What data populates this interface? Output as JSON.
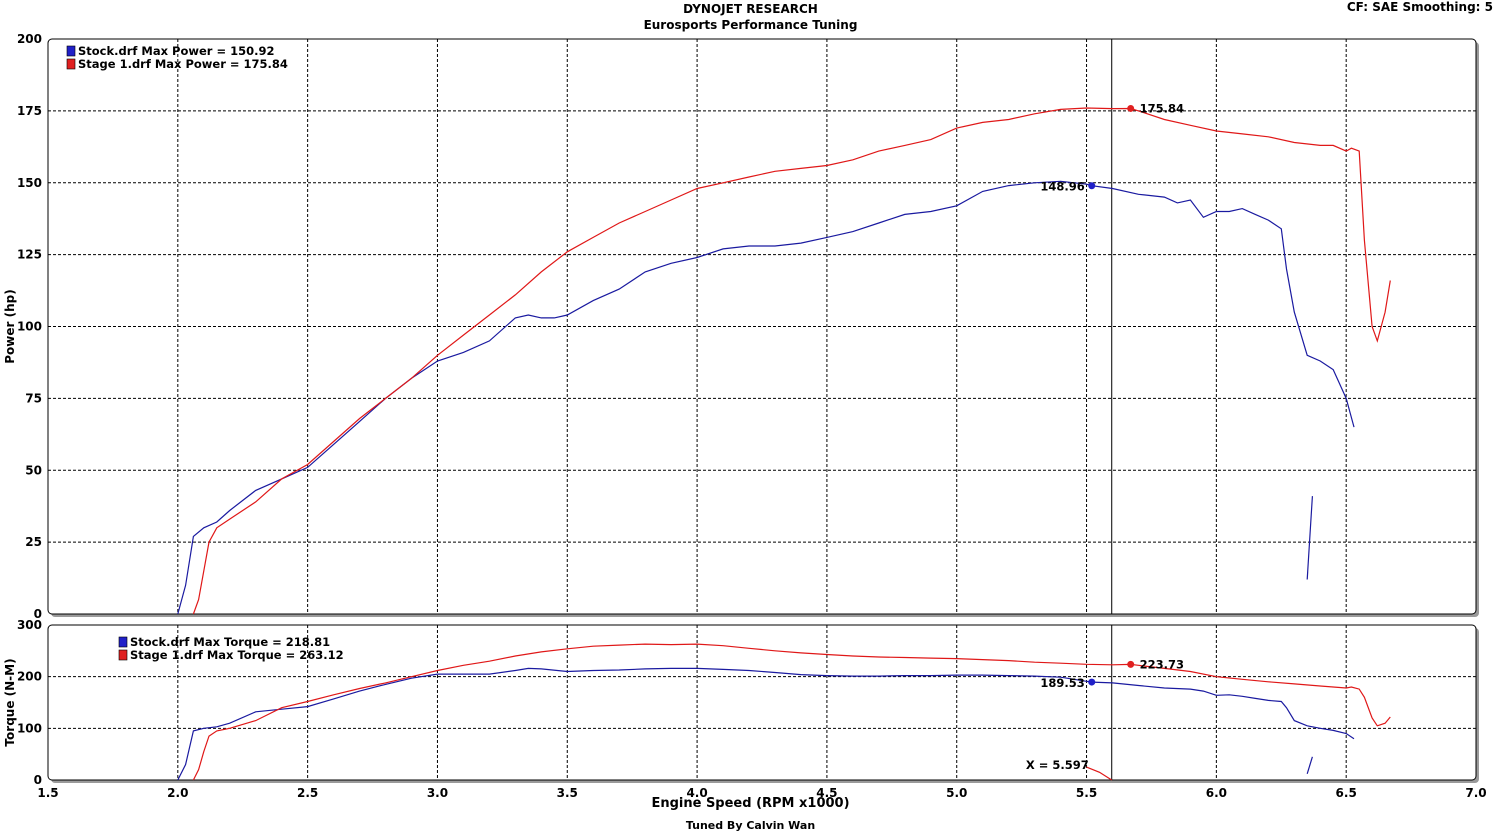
{
  "header": {
    "title": "DYNOJET RESEARCH",
    "subtitle": "Eurosports Performance Tuning",
    "cf_smoothing": "CF: SAE  Smoothing: 5",
    "footer": "Tuned By Calvin Wan"
  },
  "cursor": {
    "x": 5.597,
    "label": "X = 5.597"
  },
  "colors": {
    "stock": "#1a1aa0",
    "stage1": "#e01818",
    "stock_swatch": "#2020c8",
    "stage1_swatch": "#e02020"
  },
  "chart_data": [
    {
      "type": "line",
      "ylabel": "Power (hp)",
      "xlim": [
        1.5,
        7.0
      ],
      "ylim": [
        0,
        200
      ],
      "xticks": [
        "1.5",
        "2.0",
        "2.5",
        "3.0",
        "3.5",
        "4.0",
        "4.5",
        "5.0",
        "5.5",
        "6.0",
        "6.5",
        "7.0"
      ],
      "yticks": [
        "0",
        "25",
        "50",
        "75",
        "100",
        "125",
        "150",
        "175",
        "200"
      ],
      "grid": true,
      "legend_position": "top-left",
      "legend": [
        "Stock.drf Max Power = 150.92",
        "Stage 1.drf Max Power = 175.84"
      ],
      "series": [
        {
          "name": "Stock.drf",
          "color_key": "stock",
          "x": [
            2.0,
            2.03,
            2.06,
            2.1,
            2.15,
            2.2,
            2.3,
            2.4,
            2.5,
            2.6,
            2.7,
            2.8,
            2.9,
            3.0,
            3.1,
            3.2,
            3.3,
            3.35,
            3.4,
            3.45,
            3.5,
            3.6,
            3.7,
            3.8,
            3.9,
            4.0,
            4.1,
            4.2,
            4.3,
            4.4,
            4.5,
            4.6,
            4.7,
            4.8,
            4.9,
            5.0,
            5.1,
            5.2,
            5.3,
            5.4,
            5.5,
            5.52,
            5.6,
            5.7,
            5.8,
            5.85,
            5.9,
            5.95,
            6.0,
            6.05,
            6.1,
            6.15,
            6.2,
            6.25,
            6.27,
            6.3,
            6.35,
            6.4,
            6.45,
            6.5,
            6.53
          ],
          "y": [
            0,
            10,
            27,
            30,
            32,
            36,
            43,
            47,
            51,
            59,
            67,
            75,
            82,
            88,
            91,
            95,
            103,
            104,
            103,
            103,
            104,
            109,
            113,
            119,
            122,
            124,
            127,
            128,
            128,
            129,
            131,
            133,
            136,
            139,
            140,
            142,
            147,
            149,
            150,
            150.5,
            149.5,
            148.96,
            148,
            146,
            145,
            143,
            144,
            138,
            140,
            140,
            141,
            139,
            137,
            134,
            120,
            105,
            90,
            88,
            85,
            75,
            65
          ]
        },
        {
          "name": "Stage 1.drf",
          "color_key": "stage1",
          "x": [
            2.06,
            2.08,
            2.1,
            2.12,
            2.15,
            2.2,
            2.3,
            2.4,
            2.5,
            2.6,
            2.7,
            2.8,
            2.9,
            3.0,
            3.1,
            3.2,
            3.3,
            3.4,
            3.5,
            3.6,
            3.7,
            3.8,
            3.9,
            4.0,
            4.1,
            4.2,
            4.3,
            4.4,
            4.5,
            4.6,
            4.7,
            4.8,
            4.9,
            5.0,
            5.1,
            5.2,
            5.3,
            5.4,
            5.5,
            5.6,
            5.67,
            5.7,
            5.8,
            5.9,
            6.0,
            6.1,
            6.2,
            6.3,
            6.4,
            6.45,
            6.5,
            6.52,
            6.55,
            6.57,
            6.6,
            6.62,
            6.65,
            6.67
          ],
          "y": [
            0,
            5,
            15,
            25,
            30,
            33,
            39,
            47,
            52,
            60,
            68,
            75,
            82,
            90,
            97,
            104,
            111,
            119,
            126,
            131,
            136,
            140,
            144,
            148,
            150,
            152,
            154,
            155,
            156,
            158,
            161,
            163,
            165,
            169,
            171,
            172,
            174,
            175.5,
            176,
            175.8,
            175.84,
            175,
            172,
            170,
            168,
            167,
            166,
            164,
            163,
            163,
            161,
            162,
            161,
            130,
            100,
            95,
            105,
            116
          ]
        },
        {
          "name": "Stock.drf (tail)",
          "color_key": "stock",
          "x": [
            6.35,
            6.37
          ],
          "y": [
            12,
            41
          ]
        }
      ],
      "annotations": [
        {
          "series": "Stock.drf",
          "x": 5.52,
          "y": 148.96,
          "label": "148.96"
        },
        {
          "series": "Stage 1.drf",
          "x": 5.67,
          "y": 175.84,
          "label": "175.84"
        }
      ]
    },
    {
      "type": "line",
      "ylabel": "Torque (N-M)",
      "xlabel": "Engine Speed (RPM x1000)",
      "xlim": [
        1.5,
        7.0
      ],
      "ylim": [
        0,
        300
      ],
      "xticks": [
        "1.5",
        "2.0",
        "2.5",
        "3.0",
        "3.5",
        "4.0",
        "4.5",
        "5.0",
        "5.5",
        "6.0",
        "6.5",
        "7.0"
      ],
      "yticks": [
        "0",
        "100",
        "200",
        "300"
      ],
      "grid": true,
      "legend_position": "top-left",
      "legend": [
        "Stock.drf Max Torque = 218.81",
        "Stage 1.drf Max Torque = 263.12"
      ],
      "series": [
        {
          "name": "Stock.drf",
          "color_key": "stock",
          "x": [
            2.0,
            2.03,
            2.06,
            2.1,
            2.15,
            2.2,
            2.3,
            2.4,
            2.5,
            2.6,
            2.7,
            2.8,
            2.9,
            3.0,
            3.1,
            3.2,
            3.3,
            3.35,
            3.4,
            3.5,
            3.6,
            3.7,
            3.8,
            3.9,
            4.0,
            4.1,
            4.2,
            4.3,
            4.4,
            4.5,
            4.6,
            4.7,
            4.8,
            4.9,
            5.0,
            5.1,
            5.2,
            5.3,
            5.4,
            5.5,
            5.52,
            5.6,
            5.7,
            5.8,
            5.9,
            5.95,
            6.0,
            6.05,
            6.1,
            6.15,
            6.2,
            6.25,
            6.27,
            6.3,
            6.35,
            6.4,
            6.45,
            6.5,
            6.53
          ],
          "y": [
            0,
            30,
            95,
            100,
            103,
            110,
            132,
            137,
            142,
            157,
            172,
            185,
            197,
            205,
            205,
            205,
            212,
            216,
            215,
            210,
            212,
            213,
            215,
            216,
            216,
            214,
            212,
            208,
            204,
            202,
            201,
            201,
            202,
            202,
            203,
            203,
            202,
            201,
            199,
            191,
            189.53,
            188,
            183,
            178,
            176,
            172,
            164,
            165,
            162,
            158,
            154,
            152,
            140,
            115,
            105,
            100,
            96,
            90,
            80
          ]
        },
        {
          "name": "Stage 1.drf",
          "color_key": "stage1",
          "x": [
            2.06,
            2.08,
            2.1,
            2.12,
            2.15,
            2.2,
            2.3,
            2.4,
            2.5,
            2.6,
            2.7,
            2.8,
            2.9,
            3.0,
            3.1,
            3.2,
            3.3,
            3.4,
            3.5,
            3.6,
            3.7,
            3.8,
            3.9,
            4.0,
            4.1,
            4.2,
            4.3,
            4.4,
            4.5,
            4.6,
            4.7,
            4.8,
            4.9,
            5.0,
            5.1,
            5.2,
            5.3,
            5.4,
            5.5,
            5.6,
            5.67,
            5.7,
            5.8,
            5.9,
            6.0,
            6.1,
            6.2,
            6.3,
            6.4,
            6.45,
            6.5,
            6.52,
            6.55,
            6.57,
            6.6,
            6.62,
            6.65,
            6.67
          ],
          "y": [
            0,
            20,
            55,
            85,
            95,
            100,
            115,
            140,
            152,
            165,
            177,
            188,
            200,
            212,
            222,
            230,
            240,
            248,
            254,
            259,
            261,
            263,
            262,
            263,
            260,
            255,
            250,
            246,
            243,
            240,
            238,
            237,
            236,
            235,
            233,
            231,
            228,
            226,
            224,
            223,
            223.73,
            222,
            216,
            210,
            200,
            195,
            190,
            186,
            182,
            180,
            178,
            180,
            176,
            160,
            120,
            105,
            110,
            122
          ]
        },
        {
          "name": "Stock.drf (tail)",
          "color_key": "stock",
          "x": [
            6.35,
            6.37
          ],
          "y": [
            12,
            45
          ]
        },
        {
          "name": "Stage 1.drf (tail)",
          "color_key": "stage1",
          "x": [
            5.5,
            5.55,
            5.597
          ],
          "y": [
            25,
            15,
            0
          ]
        }
      ],
      "annotations": [
        {
          "series": "Stock.drf",
          "x": 5.52,
          "y": 189.53,
          "label": "189.53"
        },
        {
          "series": "Stage 1.drf",
          "x": 5.67,
          "y": 223.73,
          "label": "223.73"
        }
      ]
    }
  ]
}
